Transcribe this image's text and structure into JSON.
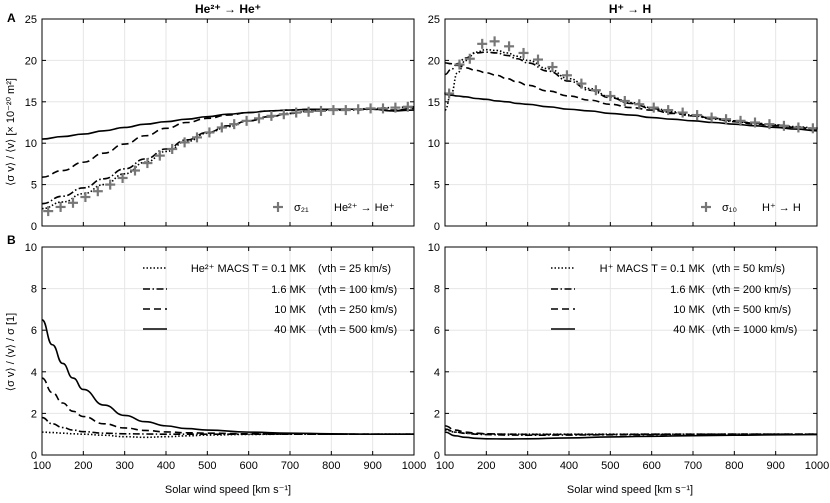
{
  "titles": {
    "left": "He²⁺ → He⁺",
    "right": "H⁺ → H"
  },
  "panel_letters": {
    "a": "A",
    "b": "B"
  },
  "xlabel": "Solar wind speed [km s⁻¹]",
  "ylabel_top": "⟨σ v⟩ / ⟨v⟩ [× 10⁻²⁰ m²]",
  "ylabel_bottom": "⟨σ v⟩ / ⟨v⟩ / σ [1]",
  "top_legends": {
    "left": {
      "symbol_label": "σ₂₁",
      "reaction": "He²⁺ → He⁺"
    },
    "right": {
      "symbol_label": "σ₁₀",
      "reaction": "H⁺ → H"
    }
  },
  "bottom_legends": {
    "left": [
      {
        "label": "He²⁺ MACS  T = 0.1 MK",
        "vth": "(vth =   25 km/s)"
      },
      {
        "label": "1.6 MK",
        "vth": "(vth = 100 km/s)"
      },
      {
        "label": "10 MK",
        "vth": "(vth = 250 km/s)"
      },
      {
        "label": "40 MK",
        "vth": "(vth = 500 km/s)"
      }
    ],
    "right": [
      {
        "label": "H⁺ MACS  T = 0.1 MK",
        "vth": "(vth =    50 km/s)"
      },
      {
        "label": "1.6 MK",
        "vth": "(vth =  200 km/s)"
      },
      {
        "label": "10 MK",
        "vth": "(vth =  500 km/s)"
      },
      {
        "label": "40 MK",
        "vth": "(vth = 1000 km/s)"
      }
    ]
  },
  "chart_data": [
    {
      "id": "A-left",
      "type": "line",
      "title": "He²⁺ → He⁺",
      "xlabel": "",
      "ylabel": "⟨σ v⟩ / ⟨v⟩ [× 10⁻²⁰ m²]",
      "xlim": [
        100,
        1000
      ],
      "ylim": [
        0,
        25
      ],
      "xticks": [
        100,
        200,
        300,
        400,
        500,
        600,
        700,
        800,
        900,
        1000
      ],
      "yticks": [
        0,
        5,
        10,
        15,
        20,
        25
      ],
      "grid": true,
      "x": [
        100,
        150,
        200,
        250,
        300,
        350,
        400,
        450,
        500,
        550,
        600,
        650,
        700,
        750,
        800,
        850,
        900,
        950,
        1000
      ],
      "series": [
        {
          "name": "T = 0.1 MK",
          "style": "dotted",
          "values": [
            2.1,
            2.9,
            3.9,
            5.0,
            6.3,
            7.7,
            9.0,
            10.2,
            11.2,
            12.0,
            12.7,
            13.2,
            13.6,
            13.9,
            14.0,
            14.1,
            14.2,
            14.3,
            14.4
          ]
        },
        {
          "name": "T = 1.6 MK",
          "style": "dashdot",
          "values": [
            2.7,
            3.6,
            4.6,
            5.7,
            6.9,
            8.1,
            9.3,
            10.4,
            11.3,
            12.1,
            12.7,
            13.2,
            13.6,
            13.9,
            14.0,
            14.0,
            14.1,
            13.9,
            14.3
          ]
        },
        {
          "name": "T = 10 MK",
          "style": "dashed",
          "values": [
            5.9,
            6.7,
            7.7,
            8.8,
            9.9,
            10.9,
            11.8,
            12.5,
            13.0,
            13.4,
            13.7,
            13.9,
            14.0,
            14.1,
            14.1,
            14.1,
            14.1,
            14.0,
            14.2
          ]
        },
        {
          "name": "T = 40 MK",
          "style": "solid",
          "values": [
            10.5,
            10.8,
            11.1,
            11.5,
            11.9,
            12.3,
            12.6,
            12.9,
            13.2,
            13.5,
            13.7,
            13.9,
            14.0,
            14.1,
            14.1,
            14.1,
            14.1,
            13.9,
            14.0
          ]
        }
      ],
      "markers": {
        "name": "σ21",
        "x": [
          115,
          145,
          175,
          205,
          235,
          265,
          295,
          325,
          355,
          385,
          415,
          445,
          475,
          505,
          535,
          565,
          595,
          625,
          655,
          685,
          715,
          745,
          775,
          805,
          835,
          865,
          895,
          925,
          955,
          985
        ],
        "values": [
          1.8,
          2.3,
          2.8,
          3.5,
          4.2,
          5.0,
          5.8,
          6.7,
          7.6,
          8.5,
          9.3,
          10.1,
          10.7,
          11.3,
          11.9,
          12.3,
          12.7,
          13.0,
          13.3,
          13.5,
          13.7,
          13.8,
          13.9,
          14.0,
          14.0,
          14.1,
          14.2,
          14.2,
          14.3,
          14.4
        ]
      }
    },
    {
      "id": "A-right",
      "type": "line",
      "title": "H⁺ → H",
      "xlabel": "",
      "ylabel": "",
      "xlim": [
        100,
        1000
      ],
      "ylim": [
        0,
        25
      ],
      "xticks": [
        100,
        200,
        300,
        400,
        500,
        600,
        700,
        800,
        900,
        1000
      ],
      "yticks": [
        0,
        5,
        10,
        15,
        20,
        25
      ],
      "grid": true,
      "x": [
        100,
        115,
        130,
        150,
        175,
        200,
        225,
        250,
        275,
        300,
        350,
        400,
        450,
        500,
        550,
        600,
        650,
        700,
        750,
        800,
        850,
        900,
        950,
        1000
      ],
      "series": [
        {
          "name": "T = 0.1 MK",
          "style": "dotted",
          "values": [
            14.0,
            16.0,
            18.5,
            20.0,
            21.0,
            21.3,
            21.2,
            20.9,
            20.5,
            20.0,
            19.0,
            17.8,
            16.6,
            15.6,
            14.9,
            14.3,
            13.8,
            13.4,
            13.0,
            12.7,
            12.4,
            12.2,
            12.0,
            11.8
          ]
        },
        {
          "name": "T = 1.6 MK",
          "style": "dashdot",
          "values": [
            18.3,
            18.9,
            19.6,
            20.3,
            20.9,
            21.0,
            20.9,
            20.6,
            20.2,
            19.7,
            18.7,
            17.5,
            16.4,
            15.5,
            14.8,
            14.2,
            13.7,
            13.3,
            12.9,
            12.6,
            12.3,
            12.1,
            11.9,
            11.7
          ]
        },
        {
          "name": "T = 10 MK",
          "style": "dashed",
          "values": [
            19.7,
            19.6,
            19.4,
            19.1,
            18.8,
            18.5,
            18.2,
            17.8,
            17.4,
            17.0,
            16.3,
            15.7,
            15.2,
            14.7,
            14.3,
            14.0,
            13.6,
            13.3,
            13.0,
            12.7,
            12.4,
            12.2,
            11.9,
            11.7
          ]
        },
        {
          "name": "T = 40 MK",
          "style": "solid",
          "values": [
            15.9,
            15.8,
            15.7,
            15.6,
            15.4,
            15.3,
            15.1,
            15.0,
            14.8,
            14.7,
            14.4,
            14.1,
            13.9,
            13.6,
            13.4,
            13.1,
            12.9,
            12.7,
            12.5,
            12.3,
            12.1,
            11.9,
            11.7,
            11.5
          ]
        }
      ],
      "markers": {
        "name": "σ10",
        "x": [
          110,
          135,
          160,
          190,
          220,
          255,
          290,
          325,
          360,
          395,
          430,
          465,
          500,
          535,
          570,
          605,
          640,
          675,
          710,
          745,
          780,
          815,
          850,
          885,
          920,
          955,
          990
        ],
        "values": [
          16.0,
          19.5,
          20.2,
          22.0,
          22.3,
          21.7,
          20.9,
          20.1,
          19.2,
          18.2,
          17.2,
          16.4,
          15.7,
          15.1,
          14.7,
          14.3,
          14.0,
          13.7,
          13.4,
          13.1,
          12.9,
          12.7,
          12.5,
          12.3,
          12.1,
          11.9,
          11.8
        ]
      }
    },
    {
      "id": "B-left",
      "type": "line",
      "xlabel": "Solar wind speed [km s⁻¹]",
      "ylabel": "⟨σ v⟩ / ⟨v⟩ / σ [1]",
      "xlim": [
        100,
        1000
      ],
      "ylim": [
        0,
        10
      ],
      "xticks": [
        100,
        200,
        300,
        400,
        500,
        600,
        700,
        800,
        900,
        1000
      ],
      "yticks": [
        0,
        2,
        4,
        6,
        8,
        10
      ],
      "grid": true,
      "x": [
        100,
        125,
        150,
        175,
        200,
        250,
        300,
        350,
        400,
        450,
        500,
        600,
        700,
        800,
        900,
        1000
      ],
      "series": [
        {
          "name": "T = 0.1 MK",
          "style": "dotted",
          "values": [
            1.1,
            1.08,
            1.05,
            1.02,
            1.0,
            0.95,
            0.88,
            0.85,
            0.88,
            0.92,
            0.96,
            0.99,
            1.0,
            1.0,
            1.0,
            1.0
          ]
        },
        {
          "name": "T = 1.6 MK",
          "style": "dashdot",
          "values": [
            1.8,
            1.5,
            1.32,
            1.2,
            1.12,
            1.05,
            1.02,
            1.01,
            1.0,
            1.0,
            1.0,
            1.0,
            1.0,
            1.0,
            1.0,
            1.0
          ]
        },
        {
          "name": "T = 10 MK",
          "style": "dashed",
          "values": [
            3.7,
            3.0,
            2.5,
            2.1,
            1.85,
            1.5,
            1.3,
            1.18,
            1.11,
            1.07,
            1.05,
            1.02,
            1.01,
            1.0,
            1.0,
            1.0
          ]
        },
        {
          "name": "T = 40 MK",
          "style": "solid",
          "values": [
            6.5,
            5.3,
            4.4,
            3.7,
            3.15,
            2.4,
            1.9,
            1.6,
            1.4,
            1.27,
            1.2,
            1.1,
            1.05,
            1.02,
            1.0,
            1.0
          ]
        }
      ]
    },
    {
      "id": "B-right",
      "type": "line",
      "xlabel": "Solar wind speed [km s⁻¹]",
      "ylabel": "",
      "xlim": [
        100,
        1000
      ],
      "ylim": [
        0,
        10
      ],
      "xticks": [
        100,
        200,
        300,
        400,
        500,
        600,
        700,
        800,
        900,
        1000
      ],
      "yticks": [
        0,
        2,
        4,
        6,
        8,
        10
      ],
      "grid": true,
      "x": [
        100,
        125,
        150,
        175,
        200,
        250,
        300,
        400,
        500,
        600,
        700,
        800,
        900,
        1000
      ],
      "series": [
        {
          "name": "T = 0.1 MK",
          "style": "dotted",
          "values": [
            1.2,
            1.1,
            1.05,
            1.02,
            1.01,
            1.0,
            1.0,
            1.0,
            1.0,
            1.0,
            1.0,
            1.0,
            1.0,
            1.0
          ]
        },
        {
          "name": "T = 1.6 MK",
          "style": "dashdot",
          "values": [
            1.25,
            1.1,
            1.04,
            1.0,
            0.98,
            0.96,
            0.95,
            0.96,
            0.97,
            0.98,
            0.99,
            1.0,
            1.0,
            1.0
          ]
        },
        {
          "name": "T = 10 MK",
          "style": "dashed",
          "values": [
            1.4,
            1.2,
            1.1,
            1.05,
            1.02,
            1.0,
            0.99,
            0.99,
            0.99,
            1.0,
            1.0,
            1.0,
            1.0,
            1.0
          ]
        },
        {
          "name": "T = 40 MK",
          "style": "solid",
          "values": [
            1.1,
            0.92,
            0.85,
            0.8,
            0.78,
            0.77,
            0.78,
            0.82,
            0.87,
            0.9,
            0.93,
            0.95,
            0.97,
            0.98
          ]
        }
      ]
    }
  ]
}
